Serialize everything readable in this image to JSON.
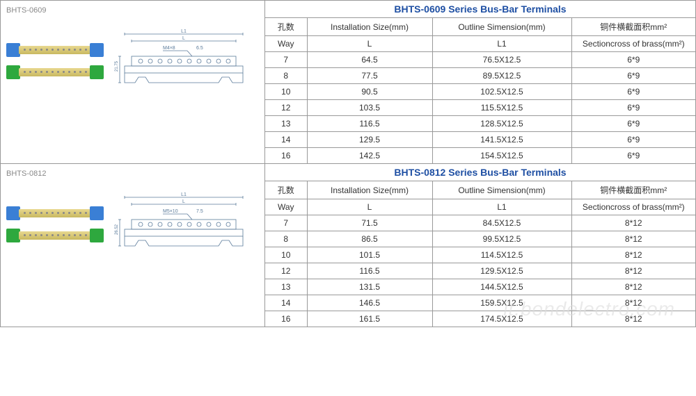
{
  "sections": [
    {
      "label": "BHTS-0609",
      "title": "BHTS-0609 Series Bus-Bar Terminals",
      "diagram_label": "M4×8",
      "diagram_dim": "6.5",
      "diagram_height": "21.75",
      "headers1": [
        "孔数",
        "Installation Size(mm)",
        "Outline Simension(mm)",
        "铜件横截面积mm²"
      ],
      "headers2": [
        "Way",
        "L",
        "L1",
        "Sectioncross of brass(mm²)"
      ],
      "rows": [
        [
          "7",
          "64.5",
          "76.5X12.5",
          "6*9"
        ],
        [
          "8",
          "77.5",
          "89.5X12.5",
          "6*9"
        ],
        [
          "10",
          "90.5",
          "102.5X12.5",
          "6*9"
        ],
        [
          "12",
          "103.5",
          "115.5X12.5",
          "6*9"
        ],
        [
          "13",
          "116.5",
          "128.5X12.5",
          "6*9"
        ],
        [
          "14",
          "129.5",
          "141.5X12.5",
          "6*9"
        ],
        [
          "16",
          "142.5",
          "154.5X12.5",
          "6*9"
        ]
      ]
    },
    {
      "label": "BHTS-0812",
      "title": "BHTS-0812 Series Bus-Bar Terminals",
      "diagram_label": "M5×10",
      "diagram_dim": "7.5",
      "diagram_height": "26.52",
      "headers1": [
        "孔数",
        "Installation Size(mm)",
        "Outline Simension(mm)",
        "铜件横截面积mm²"
      ],
      "headers2": [
        "Way",
        "L",
        "L1",
        "Sectioncross of brass(mm²)"
      ],
      "rows": [
        [
          "7",
          "71.5",
          "84.5X12.5",
          "8*12"
        ],
        [
          "8",
          "86.5",
          "99.5X12.5",
          "8*12"
        ],
        [
          "10",
          "101.5",
          "114.5X12.5",
          "8*12"
        ],
        [
          "12",
          "116.5",
          "129.5X12.5",
          "8*12"
        ],
        [
          "13",
          "131.5",
          "144.5X12.5",
          "8*12"
        ],
        [
          "14",
          "146.5",
          "159.5X12.5",
          "8*12"
        ],
        [
          "16",
          "161.5",
          "174.5X12.5",
          "8*12"
        ]
      ]
    }
  ],
  "watermark": "it.bondelectro.com",
  "colors": {
    "title": "#1e4fa3",
    "border": "#999999",
    "label": "#888888",
    "brass": "#c8b860",
    "blue_cap": "#3a7fd5",
    "green_cap": "#2ea83e"
  },
  "col_widths": [
    "60px",
    "180px",
    "200px",
    "auto"
  ]
}
